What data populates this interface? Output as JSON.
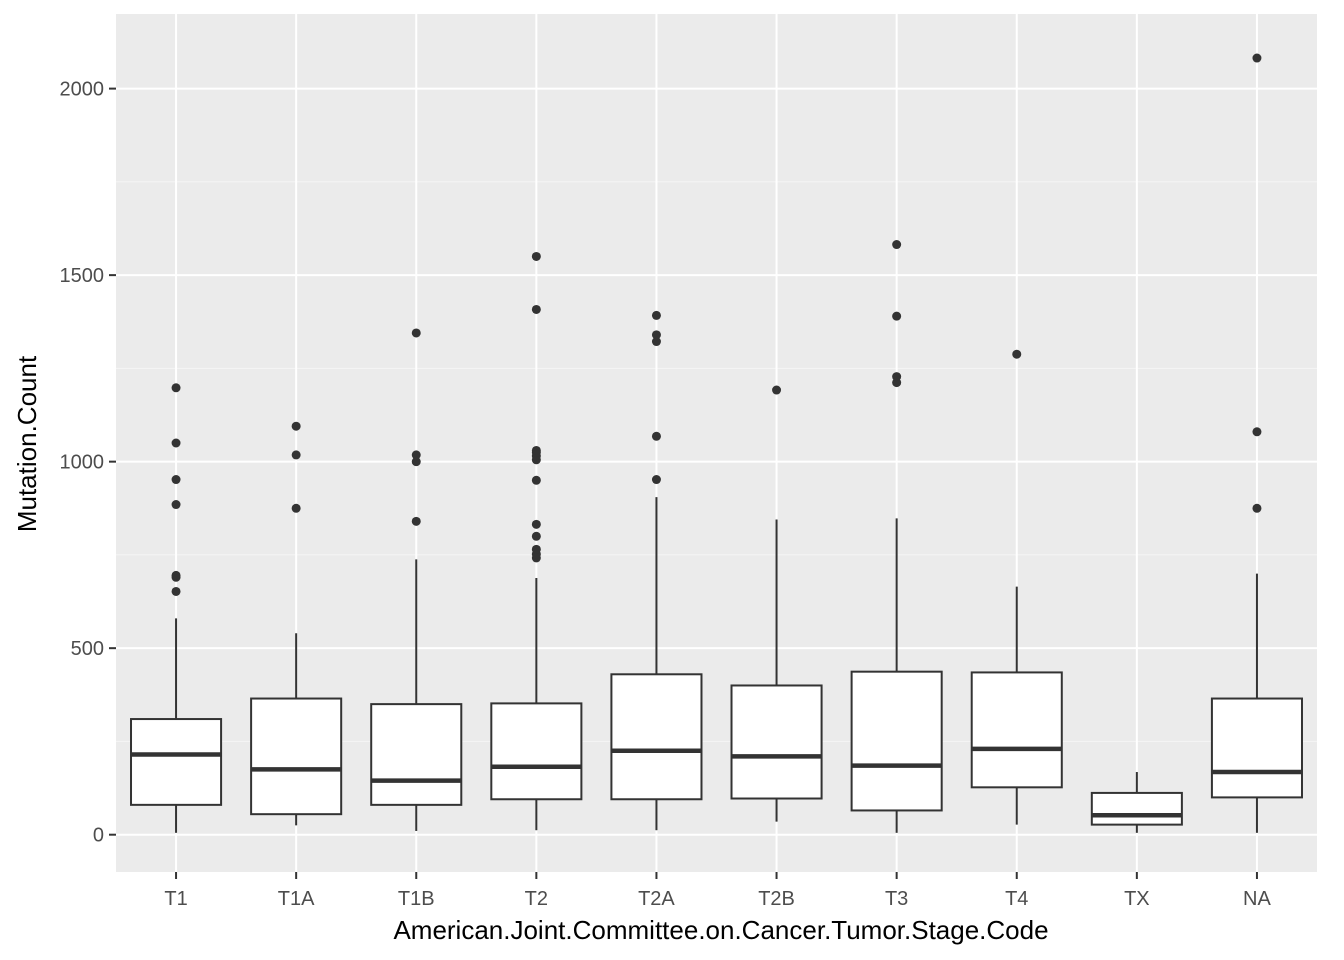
{
  "chart_data": {
    "type": "boxplot",
    "title": "",
    "xlabel": "American.Joint.Committee.on.Cancer.Tumor.Stage.Code",
    "ylabel": "Mutation.Count",
    "ylim": [
      -100,
      2200
    ],
    "y_ticks": [
      0,
      500,
      1000,
      1500,
      2000
    ],
    "y_tick_labels": [
      "0",
      "500",
      "1000",
      "1500",
      "2000"
    ],
    "grid": true,
    "categories": [
      "T1",
      "T1A",
      "T1B",
      "T2",
      "T2A",
      "T2B",
      "T3",
      "T4",
      "TX",
      "NA"
    ],
    "boxes": [
      {
        "category": "T1",
        "min": 5,
        "q1": 80,
        "median": 215,
        "q3": 310,
        "max": 580,
        "outliers": [
          652,
          690,
          695,
          885,
          952,
          1050,
          1198
        ]
      },
      {
        "category": "T1A",
        "min": 25,
        "q1": 55,
        "median": 175,
        "q3": 365,
        "max": 540,
        "outliers": [
          875,
          1018,
          1095
        ]
      },
      {
        "category": "T1B",
        "min": 10,
        "q1": 80,
        "median": 145,
        "q3": 350,
        "max": 738,
        "outliers": [
          840,
          1000,
          1018,
          1345
        ]
      },
      {
        "category": "T2",
        "min": 12,
        "q1": 95,
        "median": 182,
        "q3": 352,
        "max": 688,
        "outliers": [
          742,
          752,
          765,
          800,
          832,
          950,
          1005,
          1015,
          1025,
          1030,
          1408,
          1550
        ]
      },
      {
        "category": "T2A",
        "min": 12,
        "q1": 95,
        "median": 225,
        "q3": 430,
        "max": 905,
        "outliers": [
          952,
          1068,
          1322,
          1340,
          1392
        ]
      },
      {
        "category": "T2B",
        "min": 35,
        "q1": 97,
        "median": 210,
        "q3": 400,
        "max": 845,
        "outliers": [
          1192
        ]
      },
      {
        "category": "T3",
        "min": 5,
        "q1": 65,
        "median": 185,
        "q3": 437,
        "max": 848,
        "outliers": [
          1212,
          1228,
          1390,
          1582
        ]
      },
      {
        "category": "T4",
        "min": 27,
        "q1": 127,
        "median": 230,
        "q3": 435,
        "max": 665,
        "outliers": [
          1288
        ]
      },
      {
        "category": "TX",
        "min": 5,
        "q1": 27,
        "median": 52,
        "q3": 112,
        "max": 168,
        "outliers": []
      },
      {
        "category": "NA",
        "min": 5,
        "q1": 100,
        "median": 168,
        "q3": 365,
        "max": 700,
        "outliers": [
          875,
          1080,
          2082
        ]
      }
    ],
    "colors": {
      "panel_background": "#ebebeb",
      "grid_major": "#ffffff",
      "grid_minor": "#f5f5f5",
      "box_fill": "#ffffff",
      "box_line": "#333333",
      "outlier": "#333333",
      "tick": "#333333"
    }
  }
}
